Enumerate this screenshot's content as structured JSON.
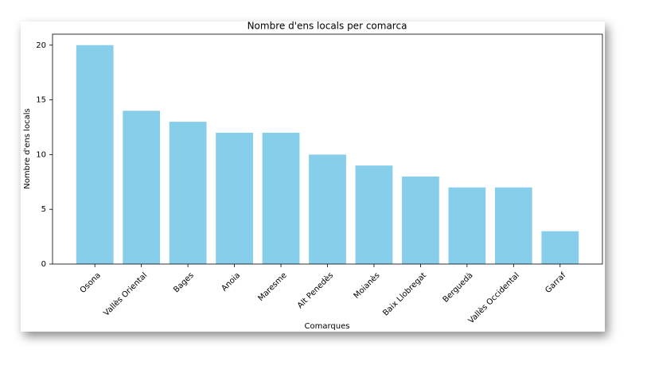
{
  "chart_data": {
    "type": "bar",
    "title": "Nombre d'ens locals per comarca",
    "x_label": "Comarques",
    "y_label": "Nombre d'ens locals",
    "categories": [
      "Osona",
      "Vallès Oriental",
      "Bages",
      "Anoia",
      "Maresme",
      "Alt Penedès",
      "Moianès",
      "Baix Llobregat",
      "Berguedà",
      "Vallès Occidental",
      "Garraf"
    ],
    "values": [
      20,
      14,
      13,
      12,
      12,
      10,
      9,
      8,
      7,
      7,
      3
    ],
    "color": "#87ceeb",
    "ylim": [
      0,
      21
    ],
    "yticks": [
      0,
      5,
      10,
      15,
      20
    ],
    "grid": false
  }
}
